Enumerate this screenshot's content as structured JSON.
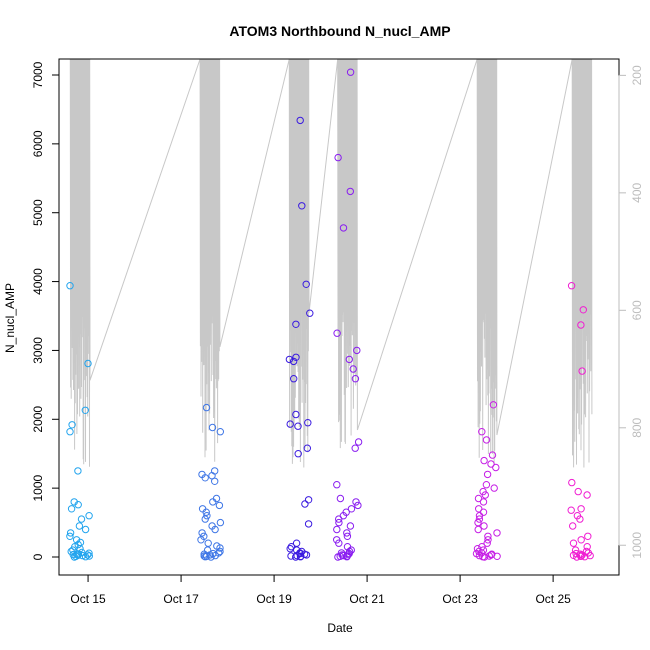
{
  "chart_data": {
    "type": "scatter",
    "title": "ATOM3 Northbound N_nucl_AMP",
    "xlabel": "Date",
    "ylabel": "N_nucl_AMP",
    "x_unit": "date",
    "xlim": [
      "2016-10-14T09:00",
      "2016-10-26T10:00"
    ],
    "ylim": [
      0,
      7300
    ],
    "x_ticks": [
      {
        "date": "2016-10-15",
        "label": "Oct 15"
      },
      {
        "date": "2016-10-17",
        "label": "Oct 17"
      },
      {
        "date": "2016-10-19",
        "label": "Oct 19"
      },
      {
        "date": "2016-10-21",
        "label": "Oct 21"
      },
      {
        "date": "2016-10-23",
        "label": "Oct 23"
      },
      {
        "date": "2016-10-25",
        "label": "Oct 25"
      }
    ],
    "y_ticks": [
      0,
      1000,
      2000,
      3000,
      4000,
      5000,
      6000,
      7000
    ],
    "y2": {
      "reversed": true,
      "ylim": [
        1020,
        150
      ],
      "ticks": [
        200,
        400,
        600,
        800,
        1000
      ],
      "color": "#bdbdbd"
    },
    "grid": false,
    "legend": "none",
    "point_style": "open-circle",
    "color_gradient": [
      "#1ea2e6",
      "#3a1be0",
      "#b21ef2",
      "#ff1ec8"
    ],
    "clusters": [
      {
        "center": "2016-10-14T20:00",
        "color": "#22a4ee",
        "values": [
          0,
          5,
          10,
          15,
          20,
          25,
          30,
          35,
          40,
          45,
          55,
          65,
          80,
          100,
          120,
          150,
          180,
          210,
          250,
          300,
          350,
          400,
          450,
          550,
          600,
          700,
          760,
          800,
          1250,
          1820,
          1920,
          2130,
          2810,
          3940
        ]
      },
      {
        "center": "2016-10-17T15:00",
        "color": "#3e76e6",
        "values": [
          0,
          5,
          10,
          15,
          20,
          30,
          40,
          50,
          60,
          80,
          100,
          130,
          160,
          200,
          250,
          300,
          350,
          400,
          450,
          500,
          550,
          600,
          650,
          700,
          750,
          800,
          850,
          1100,
          1150,
          1180,
          1200,
          1250,
          1820,
          1880,
          2170
        ]
      },
      {
        "center": "2016-10-19T13:00",
        "color": "#3a1be0",
        "values": [
          0,
          5,
          10,
          15,
          20,
          30,
          40,
          50,
          60,
          80,
          100,
          120,
          150,
          200,
          480,
          770,
          830,
          1500,
          1580,
          1900,
          1930,
          1950,
          2070,
          2590,
          2840,
          2870,
          2900,
          3380,
          3540,
          3960,
          5100,
          6340
        ]
      },
      {
        "center": "2016-10-20T14:00",
        "color": "#8a1ef0",
        "values": [
          0,
          5,
          10,
          15,
          20,
          30,
          40,
          50,
          60,
          80,
          100,
          150,
          200,
          250,
          300,
          350,
          400,
          450,
          500,
          550,
          600,
          650,
          700,
          750,
          800,
          850,
          1050,
          1580,
          1670,
          2590,
          2730,
          2870,
          3000,
          3250,
          4780,
          5310,
          5800,
          7040
        ]
      },
      {
        "center": "2016-10-23T14:00",
        "color": "#c61ee6",
        "values": [
          0,
          5,
          10,
          15,
          20,
          30,
          40,
          50,
          60,
          80,
          100,
          120,
          150,
          200,
          250,
          300,
          350,
          400,
          450,
          500,
          550,
          600,
          650,
          700,
          800,
          850,
          900,
          950,
          1000,
          1050,
          1200,
          1300,
          1350,
          1400,
          1480,
          1700,
          1820,
          2210
        ]
      },
      {
        "center": "2016-10-25T15:00",
        "color": "#f01ed2",
        "values": [
          0,
          5,
          10,
          15,
          20,
          25,
          30,
          40,
          50,
          60,
          80,
          100,
          150,
          200,
          250,
          300,
          450,
          550,
          600,
          680,
          700,
          900,
          950,
          1080,
          2700,
          3370,
          3590,
          3940
        ]
      }
    ]
  }
}
